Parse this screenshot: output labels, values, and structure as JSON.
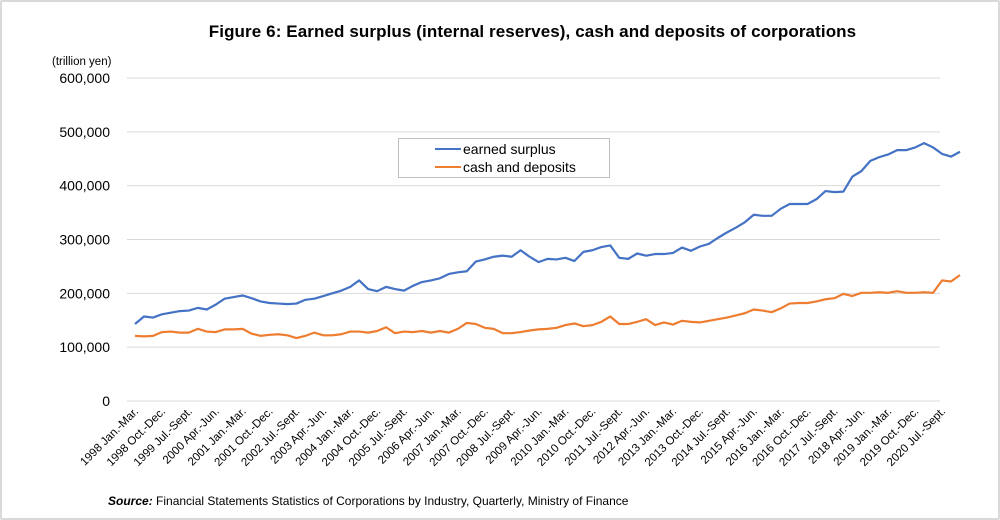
{
  "title": "Figure 6: Earned surplus (internal reserves), cash and deposits of corporations",
  "source": {
    "label": "Source",
    "text": "Financial Statements  Statistics of Corporations by Industry,  Quarterly,  Ministry of Finance"
  },
  "chart_data": {
    "type": "line",
    "title": "Figure 6: Earned surplus (internal reserves), cash and deposits of corporations",
    "xlabel": "",
    "ylabel": "(trillion yen)",
    "ylim": [
      0,
      600000
    ],
    "yticks": [
      0,
      100000,
      200000,
      300000,
      400000,
      500000,
      600000
    ],
    "ytick_labels": [
      "0",
      "100,000",
      "200,000",
      "300,000",
      "400,000",
      "500,000",
      "600,000"
    ],
    "grid": true,
    "legend_position": "upper-center",
    "x_start": "1998 Q1",
    "x_end": "2020 Q3",
    "x_frequency": "quarterly",
    "x_tick_every": 3,
    "x_tick_labels": [
      "1998 Jan.-Mar.",
      "1998 Oct.-Dec.",
      "1999 Jul.-Sept.",
      "2000 Apr.-Jun.",
      "2001 Jan.-Mar.",
      "2001 Oct.-Dec.",
      "2002 Jul.-Sept.",
      "2003 Apr.-Jun.",
      "2004 Jan.-Mar.",
      "2004 Oct.-Dec.",
      "2005 Jul.-Sept.",
      "2006 Apr.-Jun.",
      "2007 Jan.-Mar.",
      "2007 Oct.-Dec.",
      "2008 Jul.-Sept.",
      "2009 Apr.-Jun.",
      "2010 Jan.-Mar.",
      "2010 Oct.-Dec.",
      "2011 Jul.-Sept.",
      "2012 Apr.-Jun.",
      "2013 Jan.-Mar.",
      "2013 Oct.-Dec.",
      "2014 Jul.-Sept.",
      "2015 Apr.-Jun.",
      "2016 Jan.-Mar.",
      "2016 Oct.-Dec.",
      "2017 Jul.-Sept.",
      "2018 Apr.-Jun.",
      "2019 Jan.-Mar.",
      "2019 Oct.-Dec.",
      "2020 Jul.-Sept."
    ],
    "series": [
      {
        "name": "earned surplus",
        "color": "#4472c4",
        "values": [
          143000,
          157000,
          155000,
          161000,
          164000,
          167000,
          168000,
          173000,
          170000,
          179000,
          190000,
          193000,
          196000,
          191000,
          185000,
          182000,
          181000,
          180000,
          181000,
          188000,
          190000,
          195000,
          200000,
          205000,
          212000,
          224000,
          208000,
          204000,
          212000,
          208000,
          205000,
          214000,
          221000,
          224000,
          228000,
          236000,
          239000,
          241000,
          259000,
          263000,
          268000,
          270000,
          268000,
          280000,
          268000,
          258000,
          264000,
          263000,
          266000,
          260000,
          277000,
          280000,
          286000,
          289000,
          266000,
          264000,
          274000,
          270000,
          273000,
          273000,
          275000,
          285000,
          279000,
          287000,
          292000,
          303000,
          313000,
          322000,
          332000,
          346000,
          344000,
          344000,
          357000,
          366000,
          366000,
          366000,
          375000,
          390000,
          388000,
          389000,
          417000,
          427000,
          446000,
          453000,
          458000,
          466000,
          466000,
          471000,
          479000,
          471000,
          459000,
          454000,
          463000
        ]
      },
      {
        "name": "cash and deposits",
        "color": "#ed7d31",
        "values": [
          121000,
          120000,
          121000,
          128000,
          129000,
          127000,
          127000,
          134000,
          129000,
          128000,
          133000,
          133000,
          134000,
          125000,
          121000,
          123000,
          124000,
          122000,
          117000,
          121000,
          127000,
          122000,
          122000,
          124000,
          129000,
          129000,
          127000,
          130000,
          137000,
          126000,
          129000,
          128000,
          130000,
          127000,
          130000,
          127000,
          134000,
          145000,
          143000,
          136000,
          134000,
          126000,
          126000,
          128000,
          131000,
          133000,
          134000,
          136000,
          141000,
          144000,
          139000,
          141000,
          147000,
          157000,
          143000,
          143000,
          147000,
          152000,
          141000,
          146000,
          142000,
          149000,
          147000,
          146000,
          149000,
          152000,
          155000,
          159000,
          163000,
          170000,
          168000,
          165000,
          172000,
          181000,
          182000,
          182000,
          185000,
          189000,
          191000,
          199000,
          195000,
          201000,
          201000,
          202000,
          201000,
          204000,
          201000,
          201000,
          202000,
          201000,
          224000,
          222000,
          234000
        ]
      }
    ]
  }
}
